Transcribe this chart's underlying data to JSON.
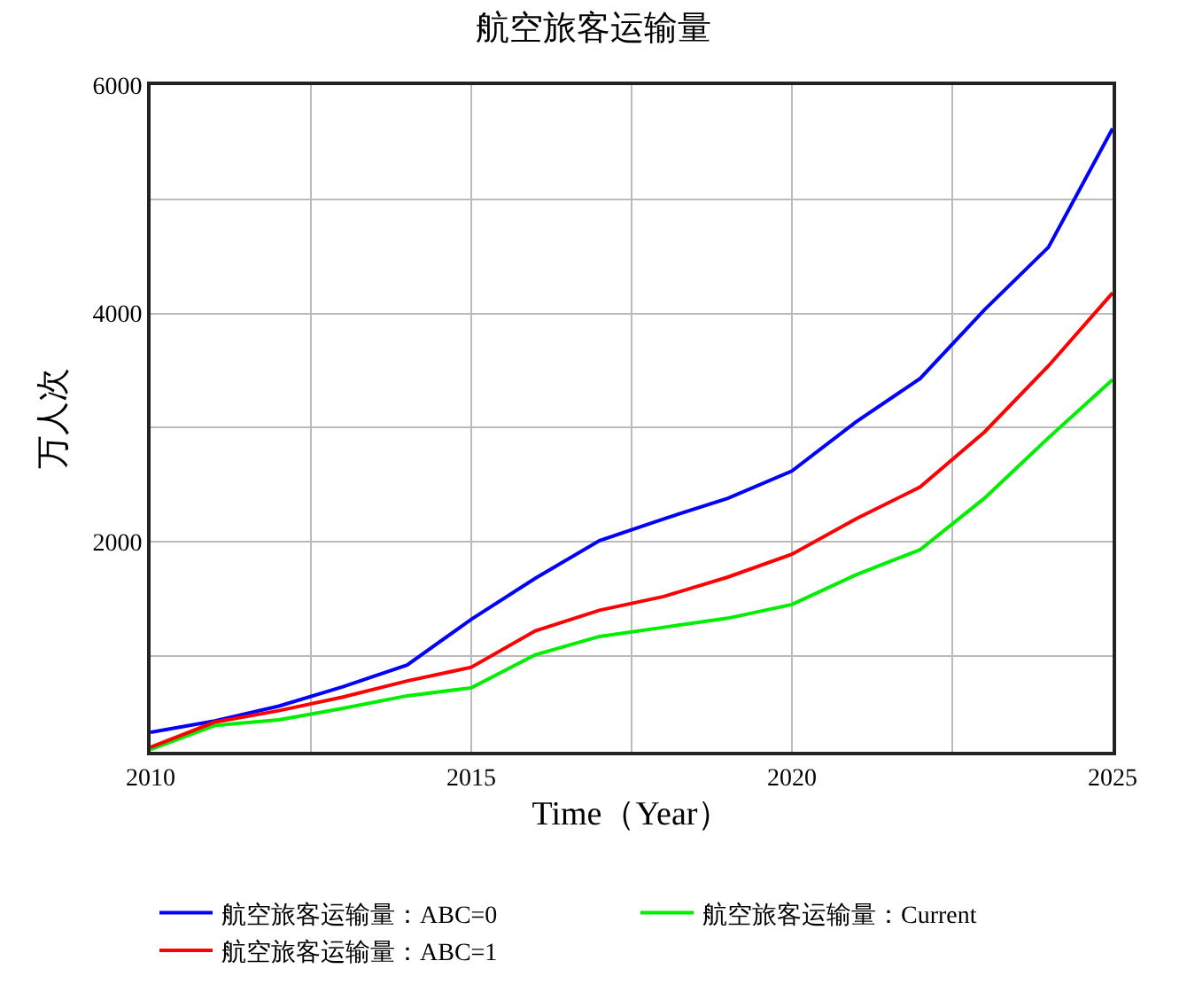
{
  "chart_data": {
    "type": "line",
    "title": "航空旅客运输量",
    "xlabel": "Time（Year）",
    "ylabel": "万人次",
    "x": [
      2010,
      2011,
      2012,
      2013,
      2014,
      2015,
      2016,
      2017,
      2018,
      2019,
      2020,
      2021,
      2022,
      2023,
      2024,
      2025
    ],
    "series": [
      {
        "name": "航空旅客运输量：ABC=0",
        "color": "#0000ff",
        "values": [
          330,
          430,
          560,
          730,
          920,
          1320,
          1680,
          2010,
          2200,
          2380,
          2620,
          3050,
          3430,
          4030,
          4580,
          5620
        ]
      },
      {
        "name": "航空旅客运输量：Current",
        "color": "#00ee00",
        "values": [
          180,
          390,
          440,
          540,
          650,
          720,
          1010,
          1170,
          1250,
          1330,
          1450,
          1710,
          1930,
          2380,
          2910,
          3420
        ]
      },
      {
        "name": "航空旅客运输量：ABC=1",
        "color": "#ff0000",
        "values": [
          200,
          420,
          520,
          640,
          780,
          900,
          1220,
          1400,
          1520,
          1690,
          1890,
          2200,
          2480,
          2960,
          3540,
          4180
        ]
      }
    ],
    "xlim": [
      2010,
      2025
    ],
    "ylim": [
      160,
      6000
    ],
    "xticks": [
      2010,
      {
        "value": 2012.5,
        "label": null
      },
      2015,
      {
        "value": 2017.5,
        "label": null
      },
      2020,
      {
        "value": 2022.5,
        "label": null
      },
      2025
    ],
    "yticks": [
      {
        "value": 1000,
        "label": null
      },
      2000,
      {
        "value": 3000,
        "label": null
      },
      4000,
      {
        "value": 5000,
        "label": null
      },
      6000
    ],
    "grid": true,
    "legend": "bottom",
    "line_style": "solid"
  }
}
